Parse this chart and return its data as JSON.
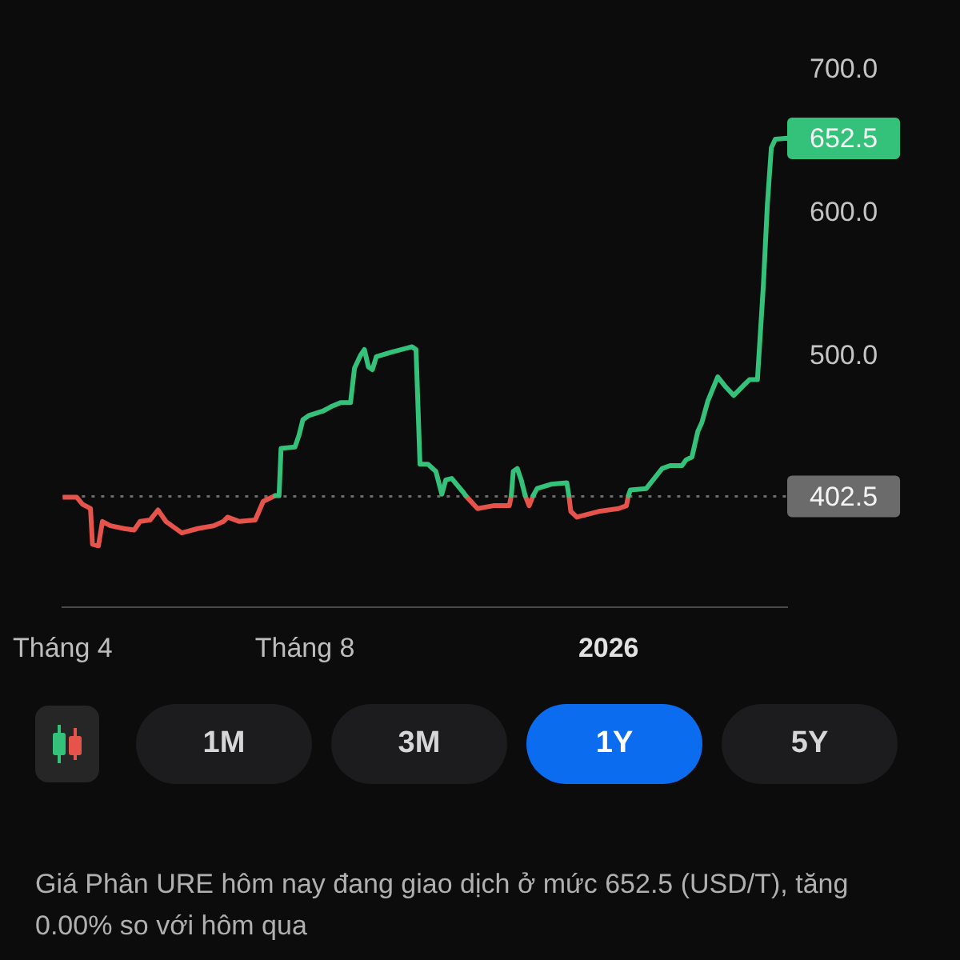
{
  "chart_data": {
    "type": "line",
    "x": [
      "2025-04-01",
      "2025-04-08",
      "2025-04-11",
      "2025-04-15",
      "2025-04-16",
      "2025-04-19",
      "2025-04-21",
      "2025-04-25",
      "2025-05-02",
      "2025-05-07",
      "2025-05-10",
      "2025-05-15",
      "2025-05-19",
      "2025-05-23",
      "2025-05-31",
      "2025-06-08",
      "2025-06-16",
      "2025-06-21",
      "2025-06-23",
      "2025-06-29",
      "2025-07-07",
      "2025-07-11",
      "2025-07-17",
      "2025-07-19",
      "2025-07-20",
      "2025-07-27",
      "2025-07-29",
      "2025-07-31",
      "2025-08-03",
      "2025-08-10",
      "2025-08-14",
      "2025-08-19",
      "2025-08-24",
      "2025-08-26",
      "2025-08-29",
      "2025-08-31",
      "2025-09-02",
      "2025-09-04",
      "2025-09-06",
      "2025-09-13",
      "2025-09-24",
      "2025-09-26",
      "2025-09-28",
      "2025-10-02",
      "2025-10-06",
      "2025-10-09",
      "2025-10-11",
      "2025-10-14",
      "2025-10-20",
      "2025-10-21",
      "2025-10-27",
      "2025-11-04",
      "2025-11-12",
      "2025-11-13",
      "2025-11-14",
      "2025-11-16",
      "2025-11-18",
      "2025-11-20",
      "2025-11-22",
      "2025-11-24",
      "2025-11-26",
      "2025-12-03",
      "2025-12-11",
      "2025-12-12",
      "2025-12-13",
      "2025-12-16",
      "2025-12-27",
      "2026-01-06",
      "2026-01-10",
      "2026-01-11",
      "2026-01-12",
      "2026-01-20",
      "2026-01-28",
      "2026-02-01",
      "2026-02-07",
      "2026-02-09",
      "2026-02-12",
      "2026-02-15",
      "2026-02-17",
      "2026-02-20",
      "2026-02-25",
      "2026-03-01",
      "2026-03-05",
      "2026-03-10",
      "2026-03-13",
      "2026-03-17",
      "2026-03-20",
      "2026-03-22",
      "2026-03-24",
      "2026-03-26",
      "2026-03-31"
    ],
    "series": [
      {
        "color": "#34c27a",
        "values": [
          null,
          null,
          null,
          null,
          null,
          null,
          null,
          null,
          null,
          null,
          null,
          null,
          null,
          null,
          null,
          null,
          null,
          null,
          null,
          null,
          null,
          null,
          403,
          403,
          436,
          437,
          445,
          456,
          459,
          462,
          465,
          468,
          468,
          492,
          501,
          505,
          493,
          491,
          500,
          503,
          507,
          505,
          425,
          425,
          420,
          404,
          414,
          415,
          405,
          403,
          null,
          null,
          null,
          403,
          420,
          422,
          414,
          403,
          null,
          403,
          408,
          411,
          412,
          403,
          null,
          null,
          null,
          null,
          null,
          403,
          407,
          408,
          422,
          424,
          424,
          428,
          430,
          448,
          454,
          469,
          486,
          479,
          473,
          480,
          484,
          484,
          550,
          606,
          646,
          652,
          652.5
        ]
      },
      {
        "color": "#e5534b",
        "values": [
          402,
          402,
          397,
          394,
          369,
          368,
          385,
          382,
          380,
          379,
          385,
          386,
          393,
          385,
          377,
          380,
          382,
          385,
          388,
          385,
          386,
          399,
          403,
          null,
          null,
          null,
          null,
          null,
          null,
          null,
          null,
          null,
          null,
          null,
          null,
          null,
          null,
          null,
          null,
          null,
          null,
          null,
          null,
          null,
          null,
          null,
          null,
          null,
          null,
          403,
          394,
          396,
          396,
          403,
          null,
          null,
          null,
          403,
          396,
          403,
          null,
          null,
          null,
          403,
          392,
          388,
          392,
          394,
          396,
          403,
          null,
          null,
          null,
          null,
          null,
          null,
          null,
          null,
          null,
          null,
          null,
          null,
          null,
          null,
          null,
          null,
          null,
          null,
          null,
          null,
          null
        ]
      }
    ],
    "xlim": [
      "2025-04-01",
      "2026-04-01"
    ],
    "xticks": [
      {
        "value": "2025-04-01",
        "label": "Tháng 4"
      },
      {
        "value": "2025-08-01",
        "label": "Tháng 8"
      },
      {
        "value": "2026-01-01",
        "label": "2026"
      }
    ],
    "ylim": [
      325,
      700
    ],
    "yticks": [
      {
        "value": 500,
        "label": "500.0"
      },
      {
        "value": 600,
        "label": "600.0"
      },
      {
        "value": 700,
        "label": "700.0"
      }
    ],
    "ref_lines": [
      {
        "axis": "y",
        "value": 402.5,
        "label": "402.5",
        "color": "#6b6b6b",
        "line_style": "dotted"
      }
    ],
    "line_style": "solid",
    "annotations": [
      {
        "text": "652.5",
        "x": "2026-03-31",
        "y": 652.5
      },
      "1M",
      "3M",
      "1Y",
      "5Y",
      "Giá Phân URE hôm nay đang giao dịch ở mức 652.5 (USD/T), tăng 0.00% so với hôm qua"
    ]
  }
}
